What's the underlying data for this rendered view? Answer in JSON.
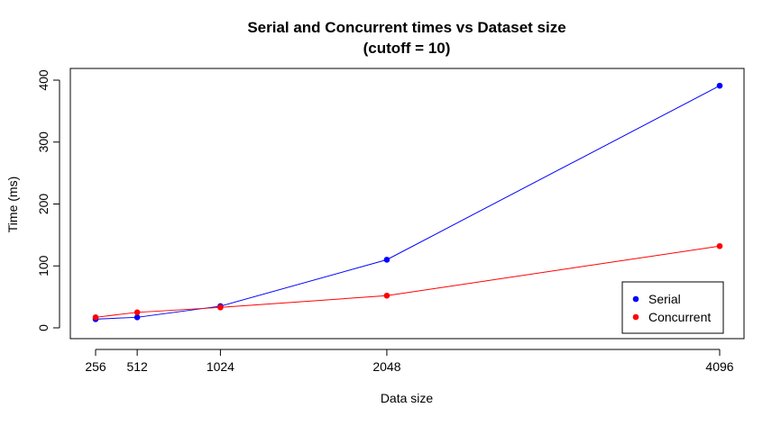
{
  "chart_data": {
    "type": "line",
    "title": "Serial and Concurrent times vs Dataset size",
    "subtitle": "(cutoff = 10)",
    "xlabel": "Data size",
    "ylabel": "Time (ms)",
    "x": [
      256,
      512,
      1024,
      2048,
      4096
    ],
    "xticks": [
      "256",
      "512",
      "1024",
      "2048",
      "4096"
    ],
    "yticks": [
      "0",
      "100",
      "200",
      "300",
      "400"
    ],
    "xlim": [
      256,
      4096
    ],
    "ylim": [
      0,
      400
    ],
    "grid": false,
    "legend_position": "bottom-right",
    "series": [
      {
        "name": "Serial",
        "color": "#0000ff",
        "values": [
          14,
          17,
          35,
          110,
          391
        ]
      },
      {
        "name": "Concurrent",
        "color": "#ff0000",
        "values": [
          17,
          25,
          33,
          52,
          132
        ]
      }
    ]
  }
}
